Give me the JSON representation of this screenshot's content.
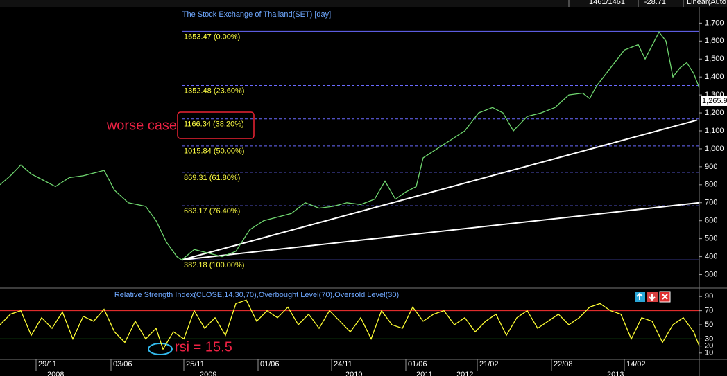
{
  "header": {
    "bars": "1461/1461",
    "change": "-28.71",
    "scale": "Linear(Auto"
  },
  "chart_data": [
    {
      "type": "line",
      "title": "The Stock Exchange of Thailand(SET) [day]",
      "color": "#6fd66f",
      "x": [
        0,
        15,
        30,
        45,
        60,
        80,
        100,
        120,
        150,
        165,
        185,
        210,
        225,
        240,
        255,
        262,
        280,
        300,
        320,
        340,
        360,
        380,
        400,
        420,
        440,
        460,
        480,
        500,
        520,
        540,
        555,
        570,
        585,
        600,
        610,
        630,
        650,
        670,
        690,
        710,
        725,
        740,
        760,
        780,
        800,
        820,
        840,
        850,
        860,
        880,
        900,
        920,
        930,
        950,
        960,
        970,
        980,
        990,
        1000,
        1008
      ],
      "values": [
        800,
        850,
        910,
        860,
        830,
        790,
        840,
        850,
        880,
        770,
        700,
        680,
        600,
        480,
        400,
        382,
        440,
        420,
        400,
        430,
        550,
        600,
        620,
        640,
        700,
        670,
        680,
        700,
        690,
        720,
        820,
        720,
        760,
        790,
        950,
        1000,
        1050,
        1100,
        1200,
        1230,
        1200,
        1100,
        1180,
        1200,
        1230,
        1300,
        1310,
        1280,
        1350,
        1450,
        1550,
        1580,
        1500,
        1650,
        1600,
        1400,
        1450,
        1480,
        1420,
        1340
      ],
      "xlim": [
        0,
        1008
      ],
      "ylim": [
        225,
        1790
      ],
      "yticks": [
        {
          "value": 300,
          "label": "300"
        },
        {
          "value": 400,
          "label": "400"
        },
        {
          "value": 500,
          "label": "500"
        },
        {
          "value": 600,
          "label": "600"
        },
        {
          "value": 700,
          "label": "700"
        },
        {
          "value": 800,
          "label": "800"
        },
        {
          "value": 900,
          "label": "900"
        },
        {
          "value": 1000,
          "label": "1,000"
        },
        {
          "value": 1100,
          "label": "1,100"
        },
        {
          "value": 1200,
          "label": "1,200"
        },
        {
          "value": 1300,
          "label": "1,300"
        },
        {
          "value": 1400,
          "label": "1,400"
        },
        {
          "value": 1500,
          "label": "1,500"
        },
        {
          "value": 1600,
          "label": "1,600"
        },
        {
          "value": 1700,
          "label": "1,700"
        }
      ],
      "levels": [
        {
          "value": 1653.47,
          "label": "1653.47 (0.00%)"
        },
        {
          "value": 1352.48,
          "label": "1352.48 (23.60%)"
        },
        {
          "value": 1166.34,
          "label": "1166.34 (38.20%)"
        },
        {
          "value": 1015.84,
          "label": "1015.84 (50.00%)"
        },
        {
          "value": 869.31,
          "label": "869.31 (61.80%)"
        },
        {
          "value": 683.17,
          "label": "683.17 (76.40%)"
        },
        {
          "value": 382.18,
          "label": "382.18 (100.00%)"
        }
      ],
      "trendlines": [
        {
          "x": [
            262,
            1005
          ],
          "values": [
            382,
            1160
          ]
        },
        {
          "x": [
            262,
            1008
          ],
          "values": [
            382,
            700
          ]
        }
      ],
      "last": {
        "value": 1265.9,
        "label": "1,265.9"
      },
      "annotation": "worse case",
      "xticks": [
        {
          "value": 52,
          "label": "29/11"
        },
        {
          "value": 160,
          "label": "03/06"
        },
        {
          "value": 265,
          "label": "25/11"
        },
        {
          "value": 372,
          "label": "01/06"
        },
        {
          "value": 478,
          "label": "24/11"
        },
        {
          "value": 585,
          "label": "01/06"
        },
        {
          "value": 688,
          "label": "21/02"
        },
        {
          "value": 795,
          "label": "22/08"
        },
        {
          "value": 900,
          "label": "14/02"
        }
      ],
      "years": [
        {
          "value": 68,
          "label": "2008"
        },
        {
          "value": 288,
          "label": "2009"
        },
        {
          "value": 498,
          "label": "2010"
        },
        {
          "value": 600,
          "label": "2011"
        },
        {
          "value": 658,
          "label": "2012"
        },
        {
          "value": 875,
          "label": "2013"
        }
      ]
    },
    {
      "type": "line",
      "title": "Relative Strength Index(CLOSE,14,30,70),Overbought Level(70),Oversold Level(30)",
      "color": "#ffff33",
      "x": [
        0,
        15,
        30,
        45,
        60,
        75,
        90,
        105,
        120,
        135,
        150,
        165,
        180,
        195,
        210,
        225,
        235,
        250,
        265,
        280,
        295,
        310,
        325,
        340,
        355,
        370,
        385,
        400,
        415,
        430,
        445,
        460,
        475,
        490,
        505,
        520,
        535,
        550,
        565,
        580,
        595,
        610,
        625,
        640,
        655,
        670,
        685,
        700,
        715,
        730,
        745,
        760,
        775,
        790,
        805,
        820,
        835,
        850,
        865,
        880,
        895,
        910,
        925,
        940,
        955,
        970,
        985,
        1000,
        1008
      ],
      "values": [
        50,
        65,
        70,
        35,
        60,
        45,
        68,
        30,
        62,
        55,
        72,
        40,
        25,
        55,
        30,
        45,
        15.5,
        40,
        30,
        70,
        45,
        60,
        35,
        80,
        85,
        55,
        70,
        60,
        75,
        50,
        65,
        45,
        70,
        55,
        40,
        60,
        30,
        70,
        50,
        45,
        75,
        55,
        65,
        70,
        50,
        60,
        40,
        55,
        65,
        35,
        60,
        70,
        45,
        55,
        65,
        50,
        60,
        75,
        80,
        70,
        65,
        30,
        60,
        55,
        25,
        50,
        60,
        40,
        20
      ],
      "xlim": [
        0,
        1008
      ],
      "ylim": [
        1,
        100
      ],
      "yticks": [
        10,
        20,
        30,
        50,
        70,
        90
      ],
      "levels": [
        {
          "value": 70,
          "color": "#ff3333"
        },
        {
          "value": 30,
          "color": "#33cc33"
        }
      ],
      "annotation": "rsi = 15.5"
    }
  ]
}
